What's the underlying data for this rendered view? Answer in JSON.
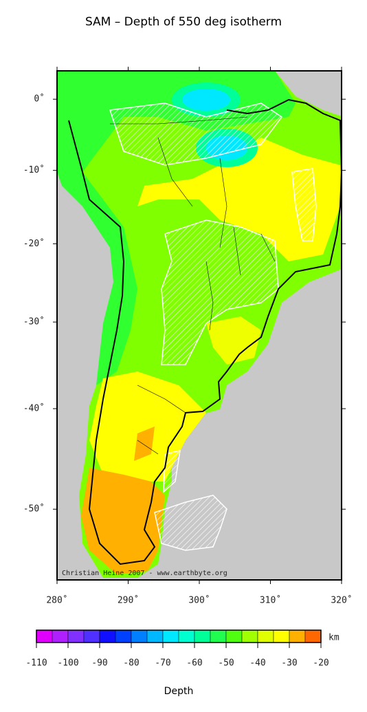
{
  "map": {
    "title": "SAM – Depth of 550 deg isotherm",
    "xlim": [
      280,
      320
    ],
    "ylim": [
      -56,
      4
    ],
    "xticks": [
      {
        "value": 280,
        "label": "280˚"
      },
      {
        "value": 290,
        "label": "290˚"
      },
      {
        "value": 300,
        "label": "300˚"
      },
      {
        "value": 310,
        "label": "310˚"
      },
      {
        "value": 320,
        "label": "320˚"
      }
    ],
    "yticks": [
      {
        "value": 0,
        "label": "0˚"
      },
      {
        "value": -10,
        "label": "-10˚"
      },
      {
        "value": -20,
        "label": "-20˚"
      },
      {
        "value": -30,
        "label": "-30˚"
      },
      {
        "value": -40,
        "label": "-40˚"
      },
      {
        "value": -50,
        "label": "-50˚"
      }
    ],
    "credit": "Christian Heine 2007 - www.earthbyte.org"
  },
  "colorbar": {
    "range": [
      -110,
      -20
    ],
    "ticks": [
      -110,
      -100,
      -90,
      -80,
      -70,
      -60,
      -50,
      -40,
      -30,
      -20
    ],
    "colors": [
      "#e000ff",
      "#b020ff",
      "#8030ff",
      "#5030ff",
      "#1010ff",
      "#0040ff",
      "#0080ff",
      "#00b8ff",
      "#00e8ff",
      "#00ffd0",
      "#00ff98",
      "#20ff50",
      "#50ff10",
      "#a0ff00",
      "#e0ff00",
      "#ffff00",
      "#ffb000",
      "#ff6800"
    ],
    "unit": "km",
    "label": "Depth"
  }
}
